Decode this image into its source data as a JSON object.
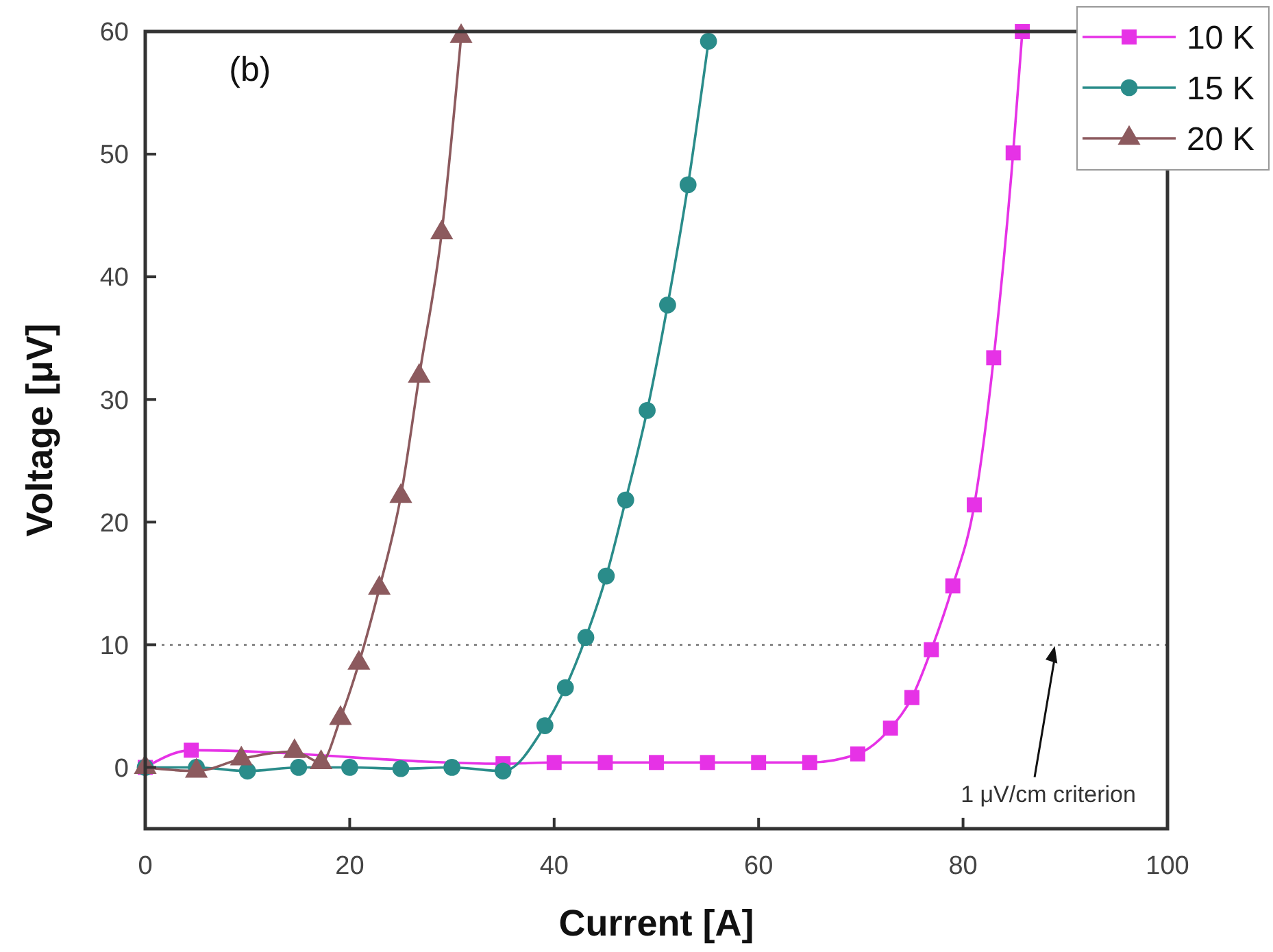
{
  "chart_data": {
    "type": "line",
    "xlabel": "Current [A]",
    "ylabel": "Voltage [μV]",
    "xlim": [
      0,
      100
    ],
    "xticks": [
      0,
      20,
      40,
      60,
      80,
      100
    ],
    "ylim": [
      -5,
      60
    ],
    "yticks": [
      0,
      10,
      20,
      30,
      40,
      50,
      60
    ],
    "grid": false,
    "legend": "top right",
    "line_style": "solid",
    "annotations": [
      "(b)",
      {
        "text": "1 μV/cm criterion",
        "x": 89,
        "y": 10
      }
    ],
    "ref_lines": [
      {
        "axis": "y",
        "value": 10,
        "color": "#888888",
        "line_style": "dotted"
      }
    ],
    "series": [
      {
        "name": "10 K",
        "color": "#e632e6",
        "marker": "square",
        "x": [
          0,
          4.5,
          35,
          40,
          45,
          50,
          55,
          60,
          65,
          69.7,
          72.9,
          75.0,
          76.9,
          79.0,
          81.1,
          83.0,
          84.9,
          85.8
        ],
        "values": [
          0,
          1.4,
          0.3,
          0.4,
          0.4,
          0.4,
          0.4,
          0.4,
          0.4,
          1.1,
          3.2,
          5.7,
          9.6,
          14.8,
          21.4,
          33.4,
          50.1,
          60
        ]
      },
      {
        "name": "15 K",
        "color": "#2a8c8a",
        "marker": "circle",
        "x": [
          0,
          5,
          10,
          15,
          20,
          25,
          30,
          35,
          39.1,
          41.1,
          43.1,
          45.1,
          47.0,
          49.1,
          51.1,
          53.1,
          55.1
        ],
        "values": [
          0,
          0,
          -0.3,
          0,
          0,
          -0.1,
          0,
          -0.3,
          3.4,
          6.5,
          10.6,
          15.6,
          21.8,
          29.1,
          37.7,
          47.5,
          59.2
        ]
      },
      {
        "name": "20 K",
        "color": "#8c5a5e",
        "marker": "triangle",
        "x": [
          0,
          5,
          9.4,
          14.6,
          17.2,
          19.1,
          20.9,
          22.9,
          25.0,
          26.8,
          29.0,
          30.9
        ],
        "values": [
          0,
          -0.3,
          0.7,
          1.3,
          0.4,
          4.0,
          8.5,
          14.6,
          22.1,
          31.9,
          43.6,
          59.6
        ]
      }
    ]
  }
}
